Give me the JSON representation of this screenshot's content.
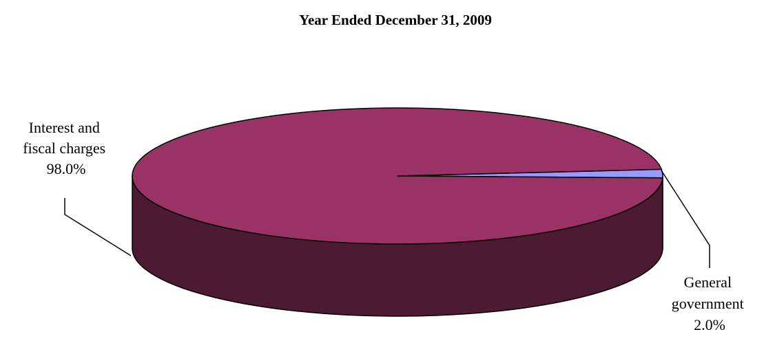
{
  "chart_data": {
    "type": "pie",
    "title": "Year Ended December 31, 2009",
    "slices": [
      {
        "label_lines": [
          "Interest and",
          "fiscal charges"
        ],
        "value": 98.0,
        "value_label": "98.0%",
        "top_color": "#993366",
        "side_color": "#4d1a33"
      },
      {
        "label_lines": [
          "General",
          "government"
        ],
        "value": 2.0,
        "value_label": "2.0%",
        "top_color": "#9999ff",
        "side_color": "#4d4d80"
      }
    ],
    "style_3d": true,
    "outline_color": "#000000"
  }
}
